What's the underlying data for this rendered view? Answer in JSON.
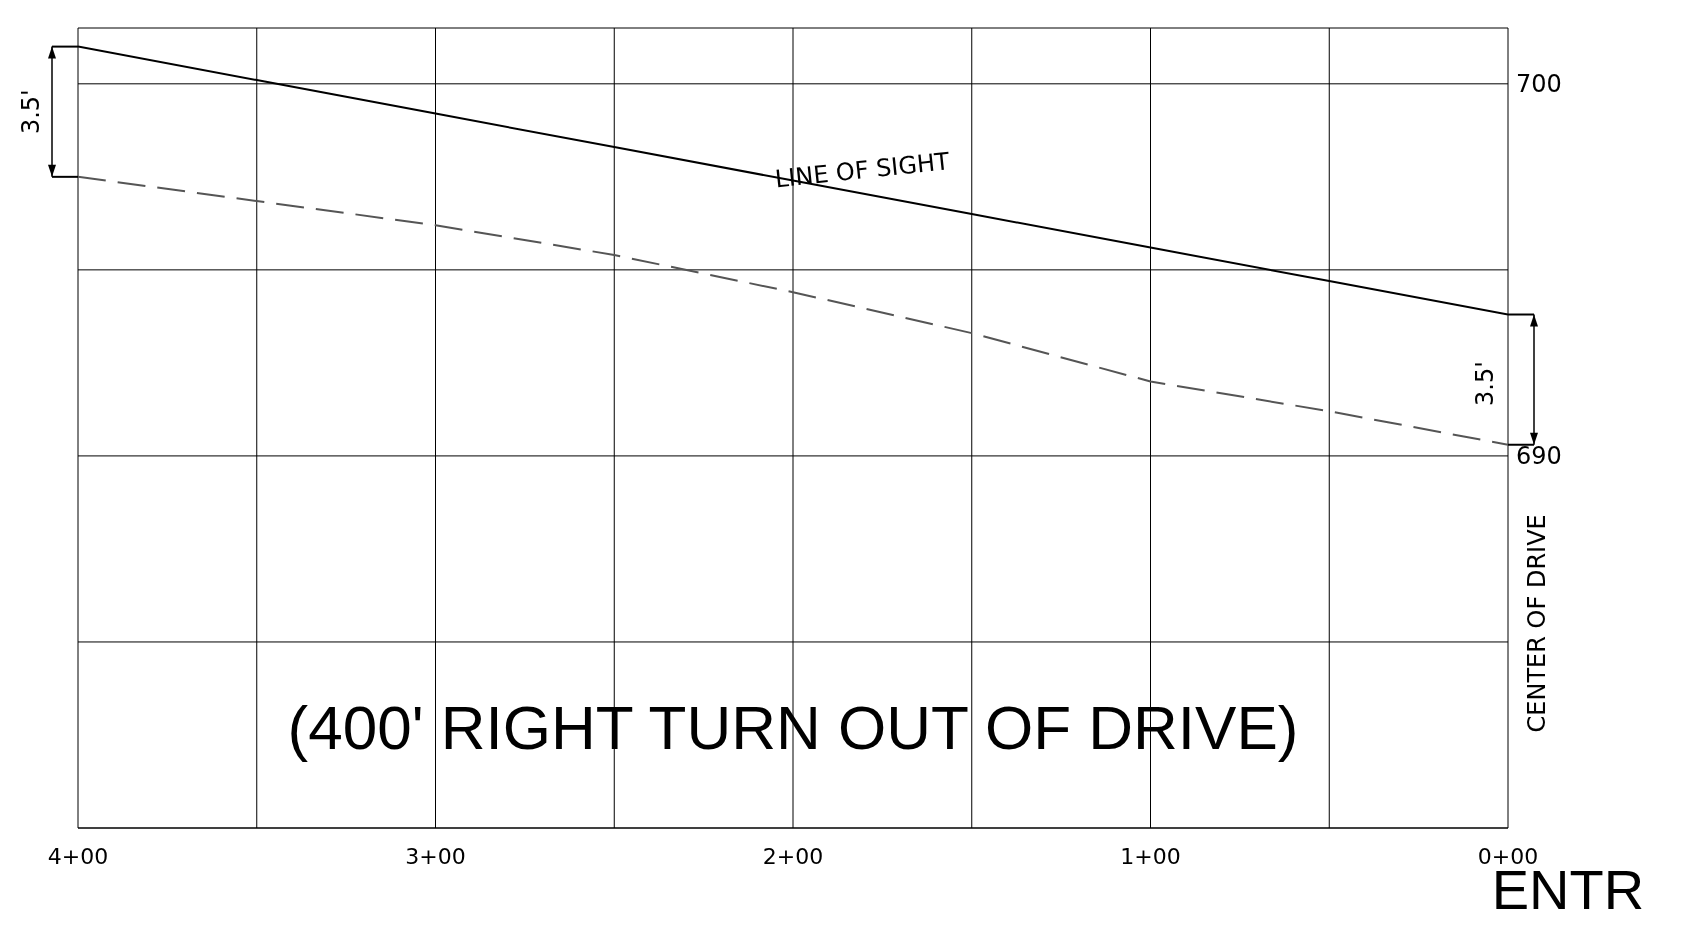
{
  "chart_data": {
    "type": "line",
    "categories": [
      "4+00",
      null,
      "3+00",
      null,
      "2+00",
      null,
      "1+00",
      null,
      "0+00"
    ],
    "series": [
      {
        "color": "#000000",
        "line_style": "solid",
        "values": [
          701.0,
          700.1,
          699.2,
          698.3,
          697.4,
          696.5,
          695.6,
          694.7,
          693.8
        ]
      },
      {
        "color": "#555555",
        "line_style": "dashed",
        "values": [
          697.5,
          696.85,
          696.2,
          695.4,
          694.4,
          693.3,
          692.0,
          691.2,
          690.3
        ]
      }
    ],
    "ylim": [
      680,
      701.5
    ],
    "yticks": [
      {
        "value": 680,
        "label": null
      },
      {
        "value": 685,
        "label": null
      },
      690,
      {
        "value": 695,
        "label": null
      },
      700
    ],
    "grid": true,
    "marker": "none",
    "annotations": [
      "LINE OF SIGHT",
      "3.5'",
      "3.5'",
      "CENTER OF DRIVE",
      "(400' RIGHT TURN OUT OF DRIVE)",
      "ENTR"
    ]
  }
}
